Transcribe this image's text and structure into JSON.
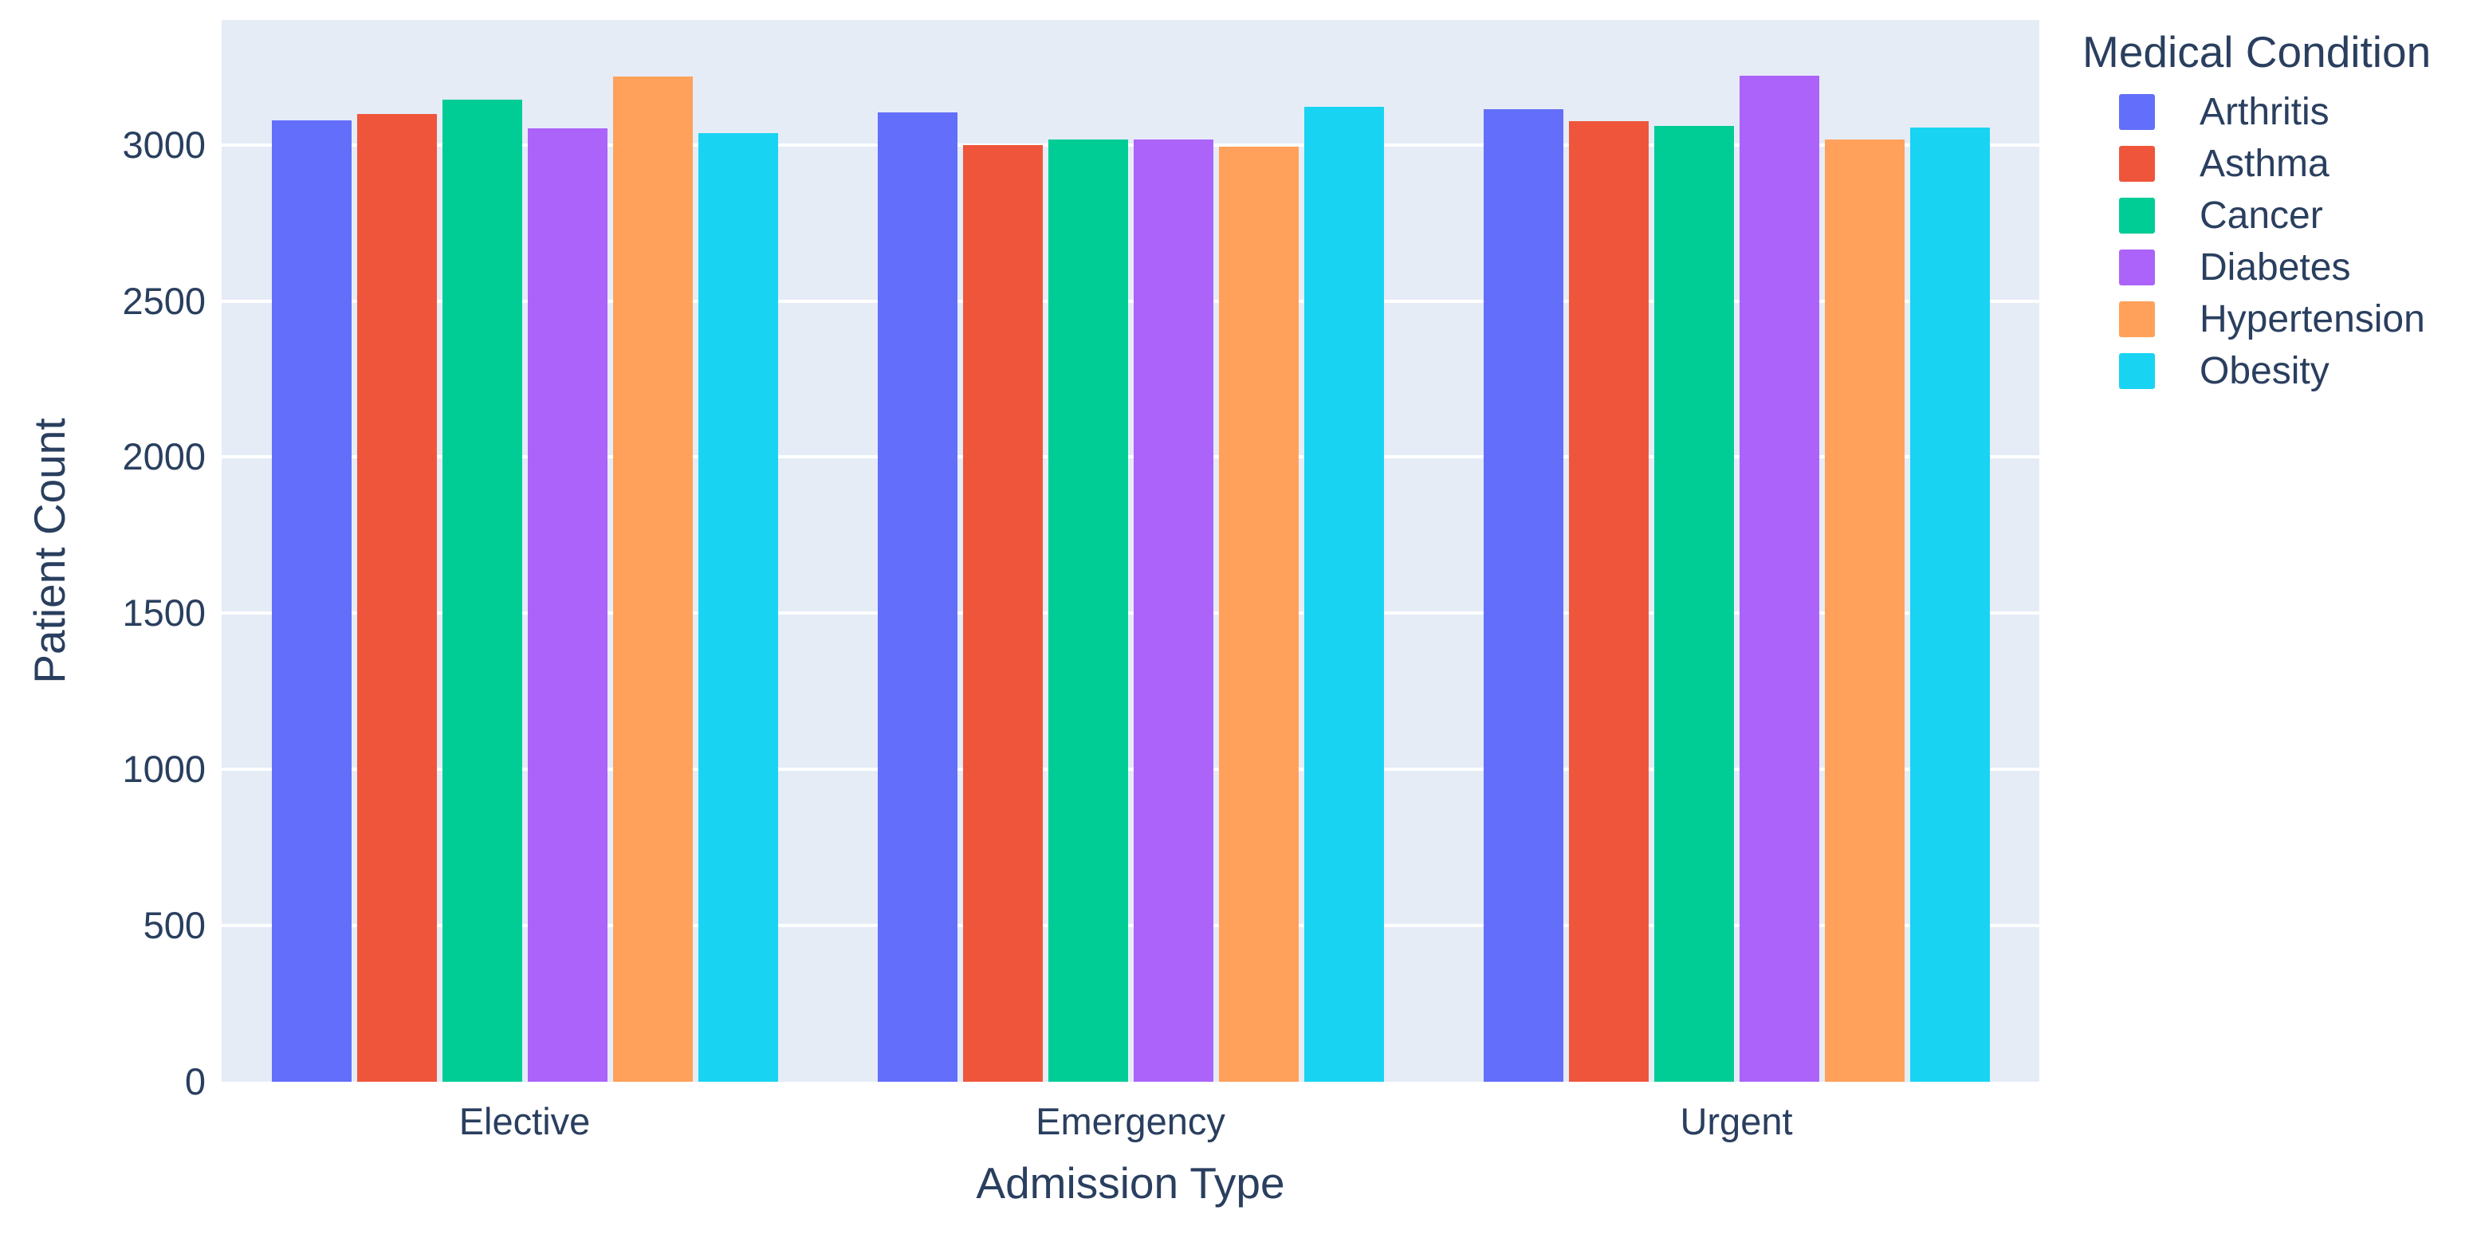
{
  "chart_data": {
    "type": "bar",
    "title": "",
    "xlabel": "Admission Type",
    "ylabel": "Patient Count",
    "legend_title": "Medical Condition",
    "categories": [
      "Elective",
      "Emergency",
      "Urgent"
    ],
    "series": [
      {
        "name": "Arthritis",
        "color": "#636EFA",
        "values": [
          3078,
          3104,
          3114
        ]
      },
      {
        "name": "Asthma",
        "color": "#EF553B",
        "values": [
          3100,
          2998,
          3076
        ]
      },
      {
        "name": "Cancer",
        "color": "#00CC96",
        "values": [
          3146,
          3016,
          3061
        ]
      },
      {
        "name": "Diabetes",
        "color": "#AB63FA",
        "values": [
          3052,
          3018,
          3222
        ]
      },
      {
        "name": "Hypertension",
        "color": "#FFA15A",
        "values": [
          3220,
          2995,
          3018
        ]
      },
      {
        "name": "Obesity",
        "color": "#19D3F3",
        "values": [
          3037,
          3122,
          3056
        ]
      }
    ],
    "yticks": [
      0,
      500,
      1000,
      1500,
      2000,
      2500,
      3000
    ],
    "ylim": [
      0,
      3400
    ],
    "grid": true,
    "legend_position": "right",
    "colors": {
      "plot_background": "#E5ECF6",
      "grid": "#FFFFFF",
      "text": "#2A3F5F",
      "page_background": "#FFFFFF"
    }
  }
}
